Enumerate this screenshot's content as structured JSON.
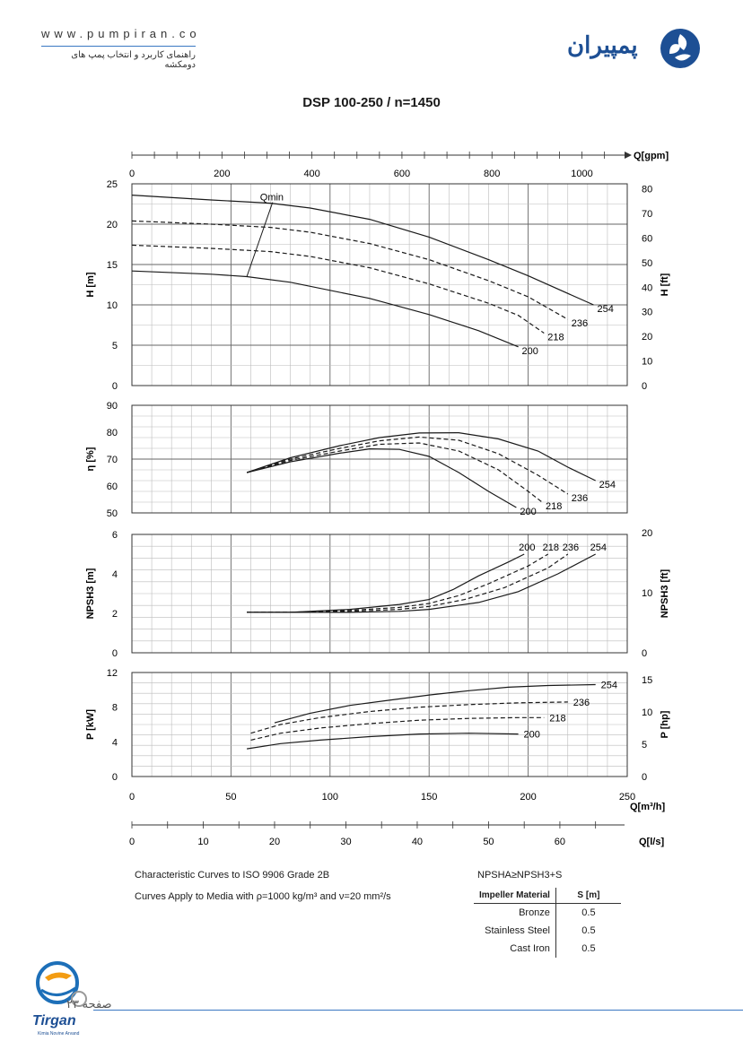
{
  "header": {
    "site_url": "www.pumpiran.co",
    "tagline": "راهنمای کاربرد و انتخاب پمپ های دومکشه",
    "brand": "پمپیران"
  },
  "chart_title": "DSP 100-250 / n=1450",
  "axes": {
    "q_gpm_label": "Q[gpm]",
    "q_m3h_label": "Q[m³/h]",
    "q_ls_label": "Q[l/s]",
    "h_m_label": "H [m]",
    "h_ft_label": "H [ft]",
    "eta_label": "η [%]",
    "npsh_m_label": "NPSH3 [m]",
    "npsh_ft_label": "NPSH3 [ft]",
    "p_kw_label": "P [kW]",
    "p_hp_label": "P [hp]",
    "qmin_label": "Qmin",
    "q_m3h_ticks": [
      0,
      50,
      100,
      150,
      200,
      250
    ],
    "q_gpm_ticks": [
      0,
      200,
      400,
      600,
      800,
      1000
    ],
    "q_ls_ticks": [
      0,
      10,
      20,
      30,
      40,
      50,
      60
    ]
  },
  "chart_data": [
    {
      "type": "line",
      "name": "head",
      "xlabel": "Q[m³/h]",
      "ylabel": "H [m]",
      "xlim": [
        0,
        250
      ],
      "ylim": [
        0,
        25
      ],
      "yticks": [
        0,
        5,
        10,
        15,
        20,
        25
      ],
      "right_ylabel": "H [ft]",
      "right_ticks": [
        0,
        10,
        20,
        30,
        40,
        50,
        60,
        70,
        80
      ],
      "series": [
        {
          "name": "254",
          "dashed": false,
          "x": [
            0,
            40,
            70,
            90,
            120,
            150,
            180,
            200,
            233
          ],
          "y": [
            23.6,
            23.0,
            22.6,
            22.0,
            20.6,
            18.4,
            15.6,
            13.6,
            10.0
          ]
        },
        {
          "name": "236",
          "dashed": true,
          "x": [
            0,
            40,
            70,
            90,
            120,
            150,
            180,
            200,
            220
          ],
          "y": [
            20.4,
            20.0,
            19.6,
            19.0,
            17.6,
            15.6,
            13.0,
            11.0,
            8.2
          ]
        },
        {
          "name": "218",
          "dashed": true,
          "x": [
            0,
            40,
            70,
            90,
            120,
            150,
            180,
            195,
            208
          ],
          "y": [
            17.4,
            17.0,
            16.6,
            16.0,
            14.6,
            12.6,
            10.2,
            8.7,
            6.5
          ]
        },
        {
          "name": "200",
          "dashed": false,
          "x": [
            0,
            40,
            58,
            80,
            120,
            150,
            175,
            195
          ],
          "y": [
            14.2,
            13.8,
            13.5,
            12.8,
            10.8,
            8.8,
            6.8,
            4.8
          ]
        }
      ],
      "qmin": {
        "x": [
          58,
          71
        ],
        "y": [
          13.5,
          22.7
        ]
      }
    },
    {
      "type": "line",
      "name": "efficiency",
      "ylabel": "η [%]",
      "xlim": [
        0,
        250
      ],
      "ylim": [
        50,
        90
      ],
      "yticks": [
        50,
        60,
        70,
        80,
        90
      ],
      "series": [
        {
          "name": "254",
          "dashed": false,
          "x": [
            58,
            80,
            105,
            125,
            145,
            165,
            185,
            205,
            220,
            234
          ],
          "y": [
            65,
            70.5,
            75,
            78,
            79.7,
            79.8,
            77.5,
            73,
            67,
            62
          ]
        },
        {
          "name": "236",
          "dashed": true,
          "x": [
            58,
            80,
            105,
            125,
            145,
            165,
            185,
            205,
            220
          ],
          "y": [
            65,
            70,
            74,
            76.8,
            78.2,
            77,
            72,
            64,
            57
          ]
        },
        {
          "name": "218",
          "dashed": true,
          "x": [
            58,
            80,
            105,
            125,
            145,
            165,
            185,
            200,
            207
          ],
          "y": [
            65,
            69.5,
            73,
            75.5,
            76,
            73,
            66,
            58,
            54
          ]
        },
        {
          "name": "200",
          "dashed": false,
          "x": [
            58,
            80,
            105,
            120,
            135,
            150,
            165,
            180,
            194
          ],
          "y": [
            65,
            69,
            72.2,
            73.8,
            73.6,
            71,
            65,
            58,
            52
          ]
        }
      ]
    },
    {
      "type": "line",
      "name": "npsh",
      "ylabel": "NPSH3 [m]",
      "xlim": [
        0,
        250
      ],
      "ylim": [
        0,
        6
      ],
      "yticks": [
        0,
        2,
        4,
        6
      ],
      "right_ylabel": "NPSH3 [ft]",
      "right_ticks": [
        0,
        10,
        20
      ],
      "series": [
        {
          "name": "200",
          "dashed": false,
          "x": [
            58,
            80,
            110,
            135,
            150,
            162,
            175,
            190,
            198
          ],
          "y": [
            2.05,
            2.05,
            2.2,
            2.45,
            2.7,
            3.2,
            3.9,
            4.6,
            5.0
          ]
        },
        {
          "name": "218",
          "dashed": true,
          "x": [
            58,
            80,
            110,
            135,
            150,
            165,
            180,
            200,
            210
          ],
          "y": [
            2.05,
            2.05,
            2.15,
            2.3,
            2.5,
            2.9,
            3.5,
            4.4,
            5.0
          ]
        },
        {
          "name": "236",
          "dashed": true,
          "x": [
            58,
            80,
            110,
            135,
            150,
            168,
            188,
            210,
            220
          ],
          "y": [
            2.05,
            2.05,
            2.1,
            2.2,
            2.35,
            2.7,
            3.3,
            4.3,
            5.0
          ]
        },
        {
          "name": "254",
          "dashed": false,
          "x": [
            58,
            80,
            110,
            135,
            150,
            175,
            195,
            215,
            234
          ],
          "y": [
            2.05,
            2.05,
            2.05,
            2.1,
            2.2,
            2.55,
            3.1,
            4.0,
            5.0
          ]
        }
      ]
    },
    {
      "type": "line",
      "name": "power",
      "ylabel": "P [kW]",
      "xlim": [
        0,
        250
      ],
      "ylim": [
        0,
        12
      ],
      "yticks": [
        0,
        4,
        8,
        12
      ],
      "right_ylabel": "P [hp]",
      "right_ticks": [
        0,
        5,
        10,
        15
      ],
      "series": [
        {
          "name": "254",
          "dashed": false,
          "x": [
            72,
            90,
            110,
            130,
            150,
            170,
            190,
            210,
            234
          ],
          "y": [
            6.2,
            7.3,
            8.2,
            8.8,
            9.4,
            9.9,
            10.3,
            10.5,
            10.6
          ]
        },
        {
          "name": "236",
          "dashed": true,
          "x": [
            60,
            75,
            95,
            120,
            145,
            170,
            195,
            220
          ],
          "y": [
            5.0,
            6.0,
            6.8,
            7.5,
            8.0,
            8.3,
            8.5,
            8.6
          ]
        },
        {
          "name": "218",
          "dashed": true,
          "x": [
            60,
            75,
            95,
            120,
            145,
            170,
            195,
            208
          ],
          "y": [
            4.2,
            5.0,
            5.6,
            6.1,
            6.5,
            6.7,
            6.8,
            6.8
          ]
        },
        {
          "name": "200",
          "dashed": false,
          "x": [
            58,
            75,
            95,
            120,
            145,
            170,
            195
          ],
          "y": [
            3.2,
            3.8,
            4.2,
            4.6,
            4.9,
            5.0,
            4.9
          ]
        }
      ]
    }
  ],
  "notes": {
    "line1": "Characteristic Curves to ISO 9906 Grade 2B",
    "line2": "Curves Apply to Media with ρ=1000 kg/m³ and ν=20 mm²/s",
    "npsh_rule": "NPSHA≥NPSH3+S"
  },
  "materials": {
    "col1": "Impeller Material",
    "col2": "S [m]",
    "rows": [
      {
        "name": "Bronze",
        "s": "0.5"
      },
      {
        "name": "Stainless Steel",
        "s": "0.5"
      },
      {
        "name": "Cast Iron",
        "s": "0.5"
      }
    ]
  },
  "footer": {
    "page_label": "صفحه ۲۳",
    "logo_name": "Tirgan",
    "logo_sub": "Kimia Novine Arvand"
  }
}
